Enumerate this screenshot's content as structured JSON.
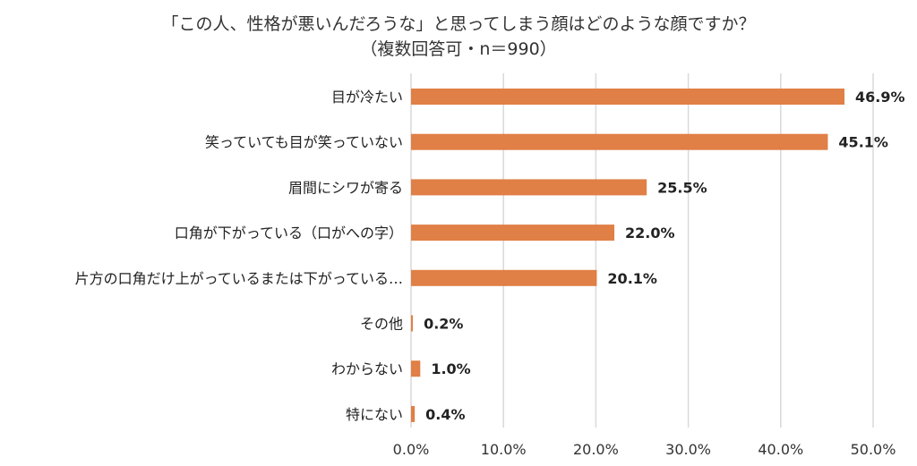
{
  "chart_data": {
    "type": "bar",
    "orientation": "horizontal",
    "title": "「この人、性格が悪いんだろうな」と思ってしまう顔はどのような顔ですか？",
    "subtitle": "（複数回答可・n＝990）",
    "categories": [
      "目が冷たい",
      "笑っていても目が笑っていない",
      "眉間にシワが寄る",
      "口角が下がっている（口がへの字）",
      "片方の口角だけ上がっているまたは下がっている…",
      "その他",
      "わからない",
      "特にない"
    ],
    "values": [
      46.9,
      45.1,
      25.5,
      22.0,
      20.1,
      0.2,
      1.0,
      0.4
    ],
    "value_labels": [
      "46.9%",
      "45.1%",
      "25.5%",
      "22.0%",
      "20.1%",
      "0.2%",
      "1.0%",
      "0.4%"
    ],
    "xlim": [
      0,
      50
    ],
    "xticks": [
      "0.0%",
      "10.0%",
      "20.0%",
      "30.0%",
      "40.0%",
      "50.0%"
    ],
    "xlabel": "",
    "ylabel": "",
    "grid": "vertical",
    "legend": "none",
    "bar_color": "#E07F46",
    "grid_color": "#D9D9D9"
  }
}
